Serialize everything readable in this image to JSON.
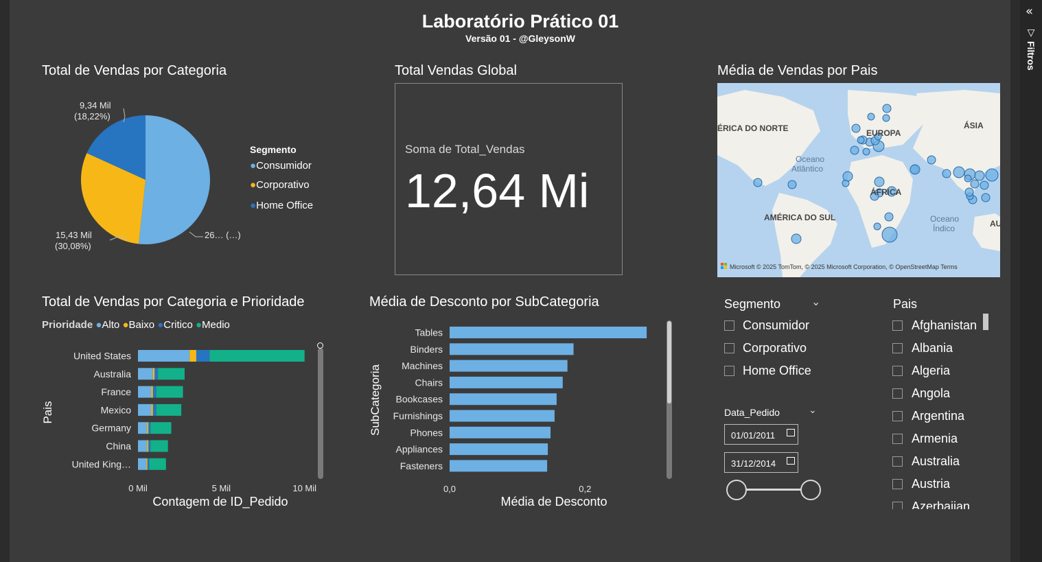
{
  "header": {
    "title": "Laboratório Prático 01",
    "subtitle": "Versão 01 - @GleysonW"
  },
  "filters_pane": {
    "label": "Filtros",
    "expand_icon": "double-chevron-left-icon",
    "filter_icon": "funnel-icon"
  },
  "pie_visual": {
    "title": "Total de Vendas por Categoria",
    "legend_title": "Segmento",
    "legend": [
      "Consumidor",
      "Corporativo",
      "Home Office"
    ],
    "data_labels": {
      "home_office_value": "9,34 Mil",
      "home_office_pct": "(18,22%)",
      "corporativo_value": "15,43 Mil",
      "corporativo_pct": "(30,08%)",
      "consumidor": "26… (…)"
    }
  },
  "kpi_visual": {
    "title": "Total Vendas Global",
    "label": "Soma de Total_Vendas",
    "value": "12,64 Mi"
  },
  "map_visual": {
    "title": "Média de Vendas por Pais",
    "labels": {
      "north_america": "ÉRICA DO NORTE",
      "europe": "EUROPA",
      "asia": "ÁSIA",
      "atlantic_line1": "Oceano",
      "atlantic_line2": "Atlântico",
      "africa": "ÁFRICA",
      "south_america": "AMÉRICA DO SUL",
      "indian_line1": "Oceano",
      "indian_line2": "Índico",
      "au": "AU"
    },
    "attribution": "Microsoft © 2025 TomTom, © 2025 Microsoft Corporation, © OpenStreetMap  Terms"
  },
  "stacked_visual": {
    "title": "Total de Vendas por Categoria e Prioridade",
    "legend_title": "Prioridade",
    "legend": [
      "Alto",
      "Baixo",
      "Critico",
      "Medio"
    ],
    "y_axis_title": "Pais",
    "x_axis_title": "Contagem de ID_Pedido",
    "x_ticks": [
      "0 Mil",
      "5 Mil",
      "10 Mil"
    ]
  },
  "desconto_visual": {
    "title": "Média de Desconto por SubCategoria",
    "y_axis_title": "SubCategoria",
    "x_axis_title": "Média de Desconto",
    "x_ticks": [
      "0,0",
      "0,2"
    ]
  },
  "segmento_slicer": {
    "title": "Segmento",
    "options": [
      "Consumidor",
      "Corporativo",
      "Home Office"
    ]
  },
  "date_slicer": {
    "title": "Data_Pedido",
    "start": "01/01/2011",
    "end": "31/12/2014"
  },
  "pais_slicer": {
    "title": "Pais",
    "options": [
      "Afghanistan",
      "Albania",
      "Algeria",
      "Angola",
      "Argentina",
      "Armenia",
      "Australia",
      "Austria",
      "Azerbaijan"
    ]
  },
  "colors": {
    "alto": "#6cb0e4",
    "baixo": "#f7b817",
    "critico": "#2774c1",
    "medio": "#12b18a",
    "bar": "#6cb0e4",
    "background": "#3b3b3b",
    "map_water": "#b5d3ee",
    "map_land": "#f2f0ea"
  },
  "chart_data": [
    {
      "type": "pie",
      "title": "Total de Vendas por Categoria",
      "legend_title": "Segmento",
      "categories": [
        "Consumidor",
        "Corporativo",
        "Home Office"
      ],
      "values": [
        26.52,
        15.43,
        9.34
      ],
      "percentages": [
        51.7,
        30.08,
        18.22
      ]
    },
    {
      "type": "bar",
      "orientation": "horizontal",
      "stacked": true,
      "title": "Total de Vendas por Categoria e Prioridade",
      "categories": [
        "United States",
        "Australia",
        "France",
        "Mexico",
        "Germany",
        "China",
        "United King…"
      ],
      "series": [
        {
          "name": "Alto",
          "values": [
            3.1,
            0.9,
            0.8,
            0.8,
            0.55,
            0.55,
            0.5
          ]
        },
        {
          "name": "Baixo",
          "values": [
            0.4,
            0.1,
            0.1,
            0.1,
            0.08,
            0.08,
            0.07
          ]
        },
        {
          "name": "Critico",
          "values": [
            0.8,
            0.2,
            0.2,
            0.2,
            0.12,
            0.12,
            0.11
          ]
        },
        {
          "name": "Medio",
          "values": [
            5.7,
            1.6,
            1.6,
            1.5,
            1.25,
            1.05,
            1.0
          ]
        }
      ],
      "xlabel": "Contagem de ID_Pedido",
      "ylabel": "Pais",
      "xlim": [
        0,
        10.3
      ]
    },
    {
      "type": "bar",
      "orientation": "horizontal",
      "title": "Média de Desconto por SubCategoria",
      "categories": [
        "Tables",
        "Binders",
        "Machines",
        "Chairs",
        "Bookcases",
        "Furnishings",
        "Phones",
        "Appliances",
        "Fasteners"
      ],
      "values": [
        0.291,
        0.183,
        0.174,
        0.167,
        0.158,
        0.155,
        0.149,
        0.145,
        0.144
      ],
      "xlabel": "Média de Desconto",
      "ylabel": "SubCategoria",
      "xlim": [
        0,
        0.3
      ]
    }
  ]
}
